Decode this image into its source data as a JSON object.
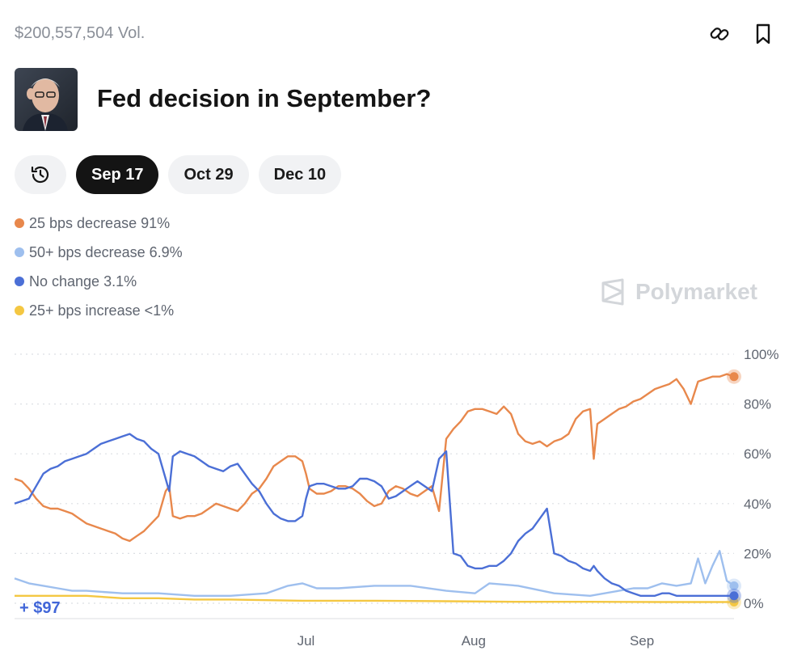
{
  "header": {
    "volume": "$200,557,504 Vol.",
    "title": "Fed decision in September?",
    "brand": "Polymarket"
  },
  "tabs": [
    {
      "label": "Sep 17",
      "active": true
    },
    {
      "label": "Oct 29",
      "active": false
    },
    {
      "label": "Dec 10",
      "active": false
    }
  ],
  "pnl": "+ $97",
  "chart_data": {
    "type": "line",
    "title": "Fed decision in September?",
    "ylim": [
      0,
      100
    ],
    "y_ticks": [
      "100%",
      "80%",
      "60%",
      "40%",
      "20%",
      "0%"
    ],
    "y_tick_values": [
      100,
      80,
      60,
      40,
      20,
      0
    ],
    "x_ticks": [
      {
        "label": "Jul",
        "x": 0.405
      },
      {
        "label": "Aug",
        "x": 0.638
      },
      {
        "label": "Sep",
        "x": 0.872
      }
    ],
    "grid": true,
    "legend_position": "top-left",
    "series": [
      {
        "name": "25 bps decrease",
        "display": "25 bps decrease 91%",
        "color": "#e8884c",
        "x": [
          0,
          0.01,
          0.02,
          0.03,
          0.04,
          0.05,
          0.06,
          0.07,
          0.08,
          0.09,
          0.1,
          0.11,
          0.12,
          0.13,
          0.14,
          0.15,
          0.16,
          0.17,
          0.18,
          0.19,
          0.2,
          0.21,
          0.215,
          0.22,
          0.23,
          0.24,
          0.25,
          0.26,
          0.27,
          0.28,
          0.29,
          0.3,
          0.31,
          0.32,
          0.33,
          0.34,
          0.35,
          0.36,
          0.37,
          0.38,
          0.39,
          0.4,
          0.405,
          0.41,
          0.42,
          0.43,
          0.44,
          0.45,
          0.46,
          0.47,
          0.48,
          0.49,
          0.5,
          0.51,
          0.52,
          0.53,
          0.54,
          0.55,
          0.56,
          0.57,
          0.58,
          0.59,
          0.6,
          0.61,
          0.62,
          0.63,
          0.64,
          0.65,
          0.66,
          0.67,
          0.68,
          0.69,
          0.7,
          0.71,
          0.72,
          0.73,
          0.74,
          0.75,
          0.76,
          0.77,
          0.78,
          0.79,
          0.8,
          0.805,
          0.81,
          0.82,
          0.83,
          0.84,
          0.85,
          0.86,
          0.87,
          0.88,
          0.89,
          0.9,
          0.91,
          0.92,
          0.93,
          0.94,
          0.95,
          0.96,
          0.97,
          0.98,
          0.99,
          1.0
        ],
        "values": [
          50,
          49,
          46,
          42,
          39,
          38,
          38,
          37,
          36,
          34,
          32,
          31,
          30,
          29,
          28,
          26,
          25,
          27,
          29,
          32,
          35,
          45,
          47,
          35,
          34,
          35,
          35,
          36,
          38,
          40,
          39,
          38,
          37,
          40,
          44,
          46,
          50,
          55,
          57,
          59,
          59,
          57,
          52,
          46,
          44,
          44,
          45,
          47,
          47,
          46,
          44,
          41,
          39,
          40,
          45,
          47,
          46,
          44,
          43,
          45,
          47,
          37,
          66,
          70,
          73,
          77,
          78,
          78,
          77,
          76,
          79,
          76,
          68,
          65,
          64,
          65,
          63,
          65,
          66,
          68,
          74,
          77,
          78,
          58,
          72,
          74,
          76,
          78,
          79,
          81,
          82,
          84,
          86,
          87,
          88,
          90,
          86,
          80,
          89,
          90,
          91,
          91,
          92,
          91
        ]
      },
      {
        "name": "50+ bps decrease",
        "display": "50+ bps decrease 6.9%",
        "color": "#9ebfee",
        "x": [
          0,
          0.02,
          0.04,
          0.06,
          0.08,
          0.1,
          0.15,
          0.2,
          0.25,
          0.3,
          0.35,
          0.38,
          0.4,
          0.42,
          0.45,
          0.5,
          0.55,
          0.6,
          0.64,
          0.66,
          0.7,
          0.75,
          0.8,
          0.84,
          0.86,
          0.88,
          0.9,
          0.92,
          0.94,
          0.95,
          0.96,
          0.97,
          0.98,
          0.99,
          1.0
        ],
        "values": [
          10,
          8,
          7,
          6,
          5,
          5,
          4,
          4,
          3,
          3,
          4,
          7,
          8,
          6,
          6,
          7,
          7,
          5,
          4,
          8,
          7,
          4,
          3,
          5,
          6,
          6,
          8,
          7,
          8,
          18,
          8,
          15,
          21,
          9,
          7
        ]
      },
      {
        "name": "No change",
        "display": "No change 3.1%",
        "color": "#4b6fd6",
        "x": [
          0,
          0.01,
          0.02,
          0.03,
          0.04,
          0.05,
          0.06,
          0.07,
          0.08,
          0.09,
          0.1,
          0.11,
          0.12,
          0.13,
          0.14,
          0.15,
          0.16,
          0.17,
          0.18,
          0.19,
          0.2,
          0.21,
          0.215,
          0.22,
          0.23,
          0.24,
          0.25,
          0.26,
          0.27,
          0.28,
          0.29,
          0.3,
          0.31,
          0.32,
          0.33,
          0.34,
          0.35,
          0.36,
          0.37,
          0.38,
          0.39,
          0.4,
          0.405,
          0.41,
          0.42,
          0.43,
          0.44,
          0.45,
          0.46,
          0.47,
          0.48,
          0.49,
          0.5,
          0.51,
          0.52,
          0.53,
          0.54,
          0.55,
          0.56,
          0.57,
          0.58,
          0.59,
          0.6,
          0.61,
          0.62,
          0.63,
          0.64,
          0.65,
          0.66,
          0.67,
          0.68,
          0.69,
          0.7,
          0.71,
          0.72,
          0.73,
          0.74,
          0.75,
          0.76,
          0.77,
          0.78,
          0.79,
          0.8,
          0.805,
          0.81,
          0.82,
          0.83,
          0.84,
          0.85,
          0.86,
          0.87,
          0.88,
          0.89,
          0.9,
          0.91,
          0.92,
          0.93,
          0.94,
          0.95,
          0.96,
          0.97,
          0.98,
          0.99,
          1.0
        ],
        "values": [
          40,
          41,
          42,
          47,
          52,
          54,
          55,
          57,
          58,
          59,
          60,
          62,
          64,
          65,
          66,
          67,
          68,
          66,
          65,
          62,
          60,
          50,
          45,
          59,
          61,
          60,
          59,
          57,
          55,
          54,
          53,
          55,
          56,
          52,
          48,
          45,
          40,
          36,
          34,
          33,
          33,
          35,
          42,
          47,
          48,
          48,
          47,
          46,
          46,
          47,
          50,
          50,
          49,
          47,
          42,
          43,
          45,
          47,
          49,
          47,
          45,
          58,
          61,
          20,
          19,
          15,
          14,
          14,
          15,
          15,
          17,
          20,
          25,
          28,
          30,
          34,
          38,
          20,
          19,
          17,
          16,
          14,
          13,
          15,
          13,
          10,
          8,
          7,
          5,
          4,
          3,
          3,
          3,
          4,
          4,
          3,
          3,
          3,
          3,
          3,
          3,
          3,
          3,
          3
        ]
      },
      {
        "name": "25+ bps increase",
        "display": "25+ bps increase <1%",
        "color": "#f4c742",
        "x": [
          0,
          0.03,
          0.06,
          0.1,
          0.15,
          0.2,
          0.25,
          0.3,
          0.4,
          0.5,
          0.6,
          0.7,
          0.8,
          0.9,
          1.0
        ],
        "values": [
          3,
          3,
          3,
          3,
          2,
          2,
          1.5,
          1.5,
          1,
          1,
          0.8,
          0.6,
          0.6,
          0.5,
          0.5
        ]
      }
    ]
  }
}
